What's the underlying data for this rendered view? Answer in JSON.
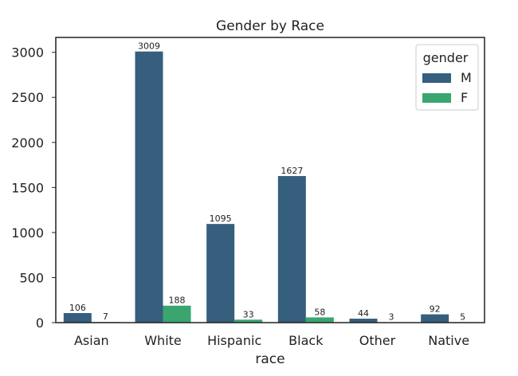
{
  "chart_data": {
    "type": "bar",
    "title": "Gender by Race",
    "xlabel": "race",
    "ylabel": "",
    "categories": [
      "Asian",
      "White",
      "Hispanic",
      "Black",
      "Other",
      "Native"
    ],
    "series": [
      {
        "name": "M",
        "values": [
          106,
          3009,
          1095,
          1627,
          44,
          92
        ],
        "color": "#355f7d"
      },
      {
        "name": "F",
        "values": [
          7,
          188,
          33,
          58,
          3,
          5
        ],
        "color": "#3aa56f"
      }
    ],
    "data_labels": {
      "M": [
        "106",
        "3009",
        "1095",
        "1627",
        "44",
        "92"
      ],
      "F": [
        "7",
        "188",
        "33",
        "58",
        "3",
        "5"
      ]
    },
    "ylim": [
      0,
      3165
    ],
    "yticks": [
      0,
      500,
      1000,
      1500,
      2000,
      2500,
      3000
    ],
    "ytick_labels": [
      "0",
      "500",
      "1000",
      "1500",
      "2000",
      "2500",
      "3000"
    ],
    "grid": false,
    "legend": {
      "title": "gender",
      "placement": "top-right"
    }
  }
}
